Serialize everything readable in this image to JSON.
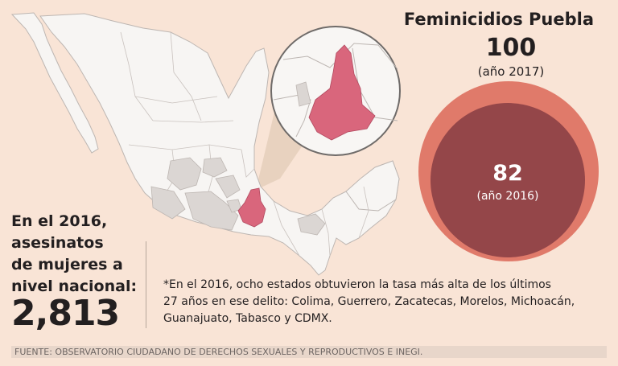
{
  "title": "Feminicidios Puebla",
  "puebla_2017": {
    "value": "100",
    "label": "(año 2017)"
  },
  "puebla_2016": {
    "value": "82",
    "label": "(año 2016)"
  },
  "national": {
    "label_lines": [
      "En el 2016,",
      "asesinatos",
      "de mujeres a",
      "nivel nacional:"
    ],
    "value": "2,813"
  },
  "note_lines": [
    "*En el 2016, ocho estados obtuvieron la tasa más alta de los últimos",
    "27 años en ese delito: Colima, Guerrero, Zacatecas, Morelos, Michoacán,",
    "Guanajuato, Tabasco y CDMX."
  ],
  "source": "FUENTE: OBSERVATORIO CIUDADANO DE DERECHOS SEXUALES Y REPRODUCTIVOS E INEGI.",
  "colors": {
    "background": "#f9e4d6",
    "puebla": "#d9667c",
    "highlighted_states": "#dbd6d3",
    "bubble_2017": "#e07a6a",
    "bubble_2016": "#944649"
  }
}
